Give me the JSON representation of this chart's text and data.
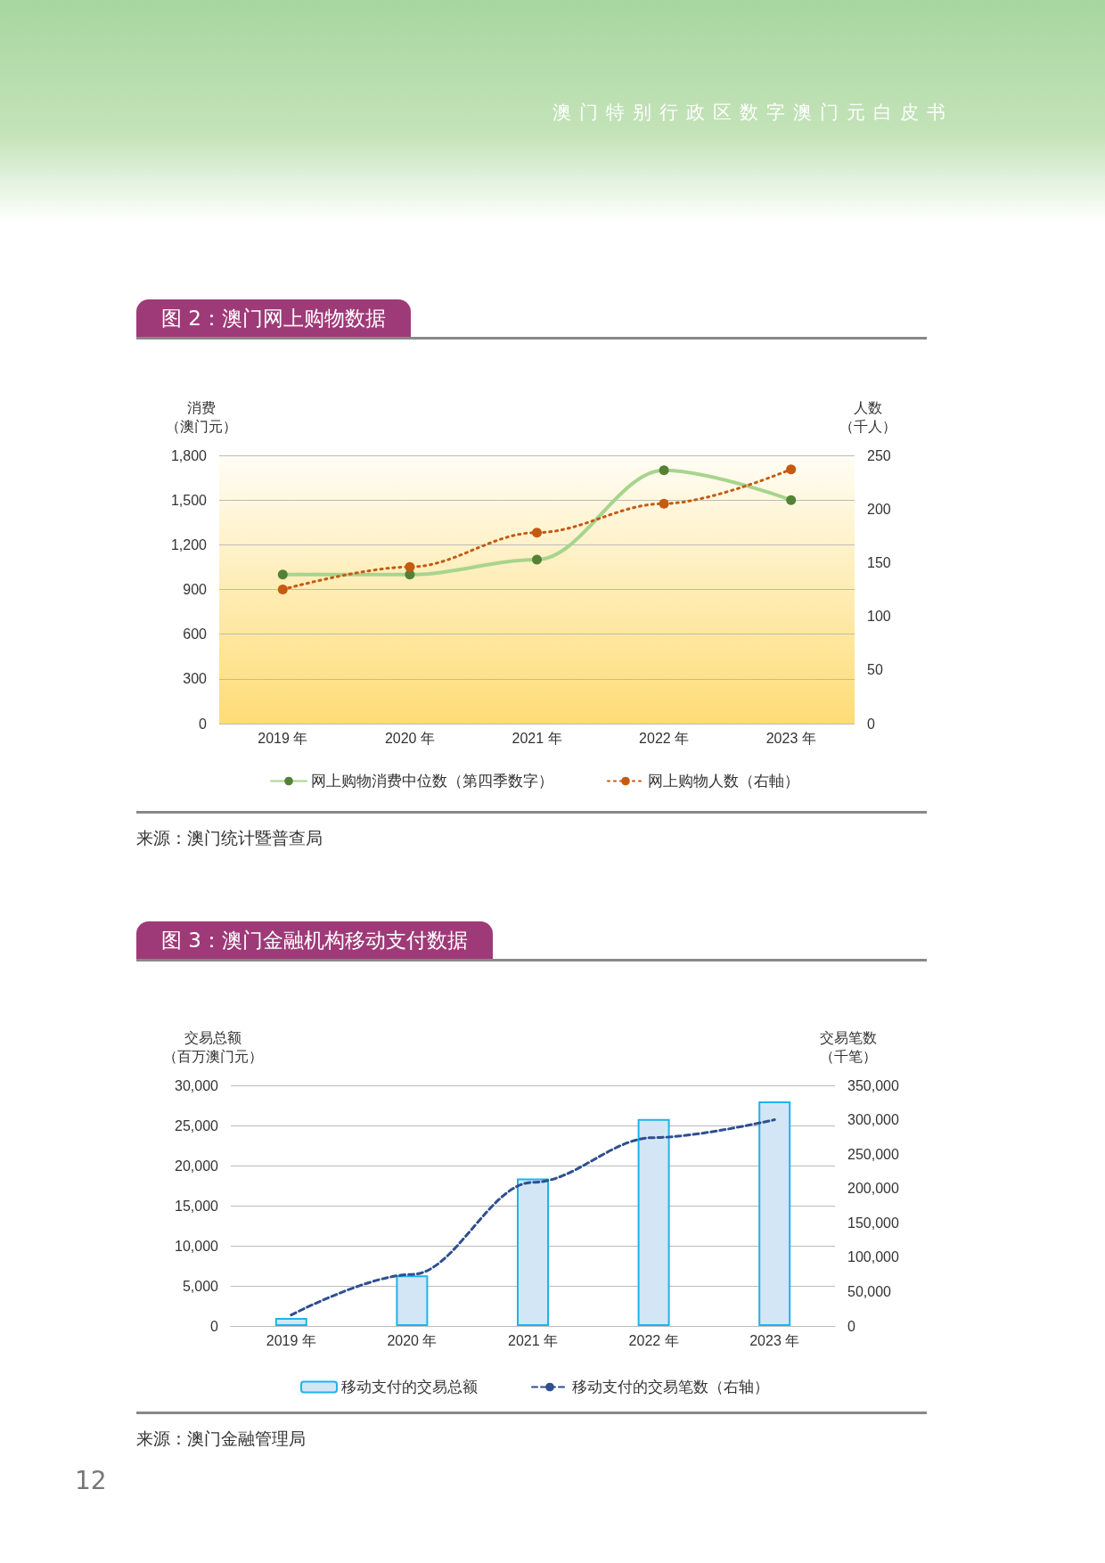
{
  "chart_data": [
    {
      "type": "line",
      "title": "图 2：澳门网上购物数据",
      "ylabel": "消费（澳门元）",
      "y2label": "人数（千人）",
      "categories": [
        "2019 年",
        "2020 年",
        "2021 年",
        "2022 年",
        "2023 年"
      ],
      "series": [
        {
          "name": "网上购物消费中位数（第四季数字）",
          "color": "#a8d48e",
          "values": [
            1000,
            1000,
            1100,
            1700,
            1500
          ],
          "line_style": "solid"
        },
        {
          "name": "网上购物人数（右軸）",
          "color": "#c55a11",
          "values": [
            125,
            146,
            178,
            205,
            237
          ],
          "axis": "y2",
          "line_style": "dotted"
        }
      ],
      "ylim": [
        0,
        1800
      ],
      "yticks": [
        0,
        300,
        600,
        900,
        {
          "value": 1200,
          "label": "1,200"
        },
        {
          "value": 1500,
          "label": "1,500"
        },
        {
          "value": 1800,
          "label": "1,800"
        }
      ],
      "y2lim": [
        0,
        250
      ],
      "y2ticks": [
        0,
        50,
        100,
        150,
        200,
        250
      ],
      "marker": "circle",
      "grid": "y",
      "legend": "bottom",
      "annotations": [
        "来源：澳门统计暨普查局",
        "澳门特别行政区数字澳门元白皮书"
      ]
    },
    {
      "type": "bar",
      "title": "图 3：澳门金融机构移动支付数据",
      "ylabel": "交易总额（百万澳门元）",
      "y2label": "交易笔数（千笔）",
      "categories": [
        "2019 年",
        "2020 年",
        "2021 年",
        "2022 年",
        "2023 年"
      ],
      "series": [
        {
          "name": "移动支付的交易总额",
          "color": "#1eb4ea",
          "values": [
            1000,
            6300,
            18400,
            25800,
            28000
          ]
        },
        {
          "name": "移动支付的交易笔数（右轴）",
          "type": "line",
          "color": "#2f4f8f",
          "values": [
            16000,
            75000,
            209000,
            274000,
            300000
          ],
          "axis": "y2",
          "line_style": "dashed"
        }
      ],
      "ylim": [
        0,
        30000
      ],
      "yticks": [
        0,
        {
          "value": 5000,
          "label": "5,000"
        },
        {
          "value": 10000,
          "label": "10,000"
        },
        {
          "value": 15000,
          "label": "15,000"
        },
        {
          "value": 20000,
          "label": "20,000"
        },
        {
          "value": 25000,
          "label": "25,000"
        },
        {
          "value": 30000,
          "label": "30,000"
        }
      ],
      "y2lim": [
        0,
        350000
      ],
      "y2ticks": [
        0,
        {
          "value": 50000,
          "label": "50,000"
        },
        {
          "value": 100000,
          "label": "100,000"
        },
        {
          "value": 150000,
          "label": "150,000"
        },
        {
          "value": 200000,
          "label": "200,000"
        },
        {
          "value": 250000,
          "label": "250,000"
        },
        {
          "value": 300000,
          "label": "300,000"
        },
        {
          "value": 350000,
          "label": "350,000"
        }
      ],
      "marker": "none",
      "grid": "y",
      "legend": "bottom",
      "annotations": [
        "来源：澳门金融管理局",
        "12"
      ]
    }
  ]
}
